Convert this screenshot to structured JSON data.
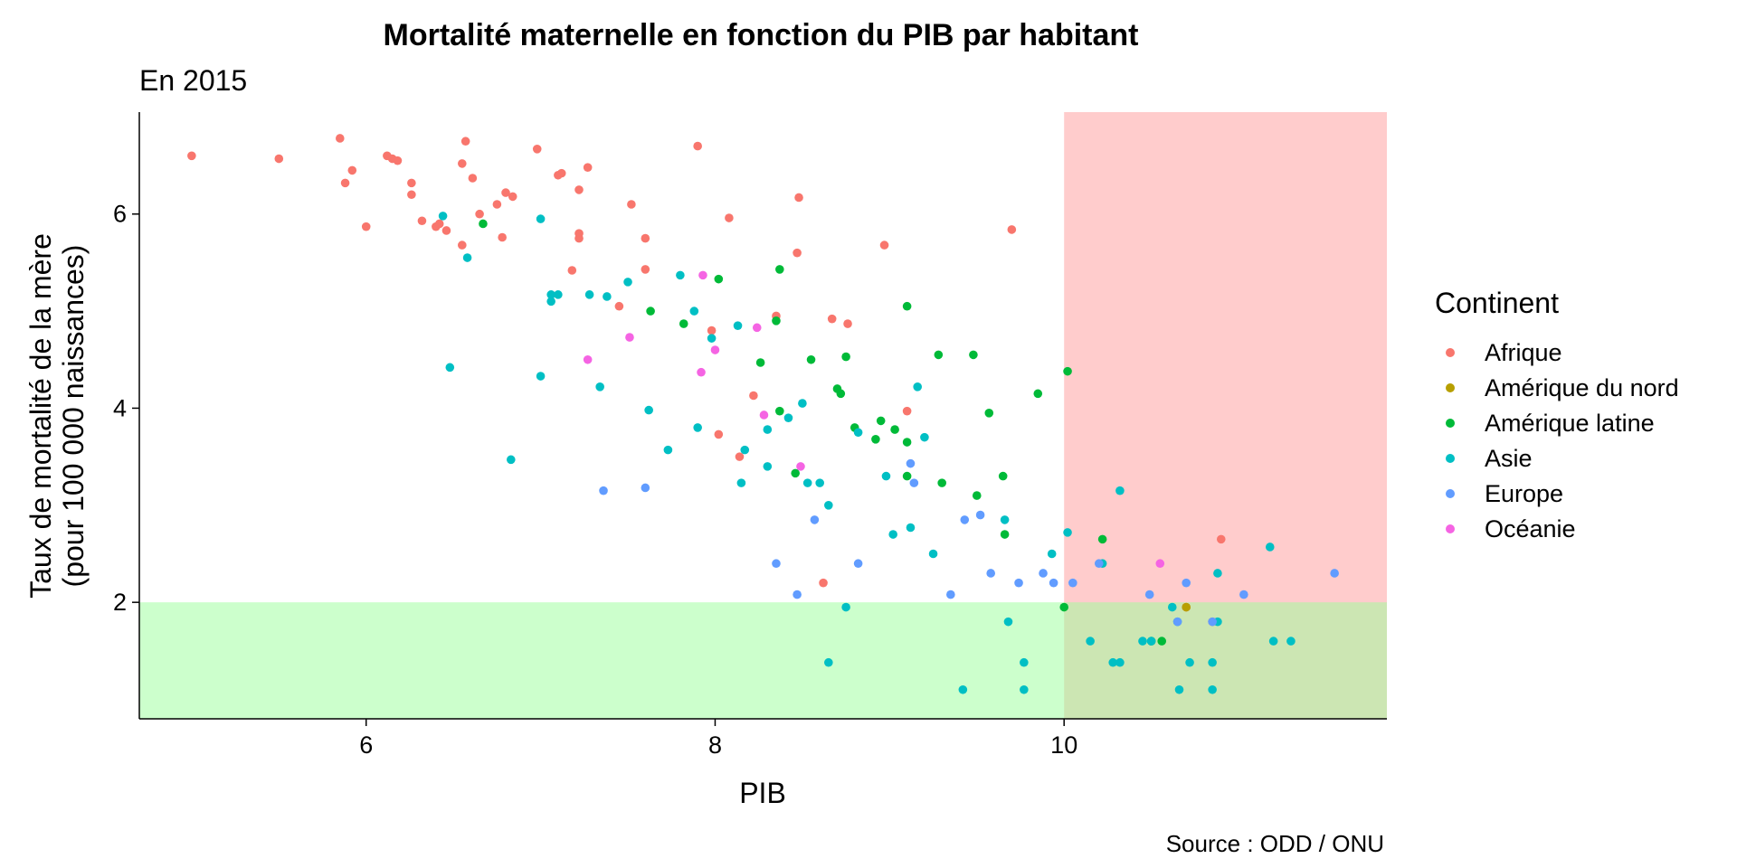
{
  "chart_data": {
    "type": "scatter",
    "title": "Mortalité maternelle en fonction du PIB par habitant",
    "subtitle": "En 2015",
    "xlabel": "PIB",
    "ylabel_line1": "Taux de mortalité de la mère",
    "ylabel_line2": "(pour 100 000 naissances)",
    "caption": "Source : ODD / ONU",
    "xlim": [
      4.7,
      11.85
    ],
    "ylim": [
      0.8,
      7.05
    ],
    "xticks": [
      6,
      8,
      10
    ],
    "yticks": [
      2,
      4,
      6
    ],
    "grid": false,
    "legend_position": "right",
    "legend_title": "Continent",
    "regions": [
      {
        "name": "zone-rouge",
        "x": [
          10,
          11.85
        ],
        "y": [
          0.8,
          7.05
        ],
        "color": "#ff9999",
        "opacity": 0.5
      },
      {
        "name": "zone-verte",
        "x": [
          4.7,
          11.85
        ],
        "y": [
          0.8,
          2.0
        ],
        "color": "#99ff99",
        "opacity": 0.5
      }
    ],
    "series": [
      {
        "name": "Afrique",
        "color": "#F8766D",
        "points": [
          [
            5.0,
            6.6
          ],
          [
            5.5,
            6.57
          ],
          [
            5.85,
            6.78
          ],
          [
            5.88,
            6.32
          ],
          [
            5.92,
            6.45
          ],
          [
            6.0,
            5.87
          ],
          [
            6.12,
            6.6
          ],
          [
            6.15,
            6.57
          ],
          [
            6.18,
            6.55
          ],
          [
            6.26,
            6.32
          ],
          [
            6.26,
            6.2
          ],
          [
            6.32,
            5.93
          ],
          [
            6.4,
            5.87
          ],
          [
            6.42,
            5.9
          ],
          [
            6.46,
            5.83
          ],
          [
            6.55,
            6.52
          ],
          [
            6.57,
            6.75
          ],
          [
            6.61,
            6.37
          ],
          [
            6.65,
            6.0
          ],
          [
            6.55,
            5.68
          ],
          [
            6.75,
            6.1
          ],
          [
            6.78,
            5.76
          ],
          [
            6.8,
            6.22
          ],
          [
            6.84,
            6.18
          ],
          [
            6.98,
            6.67
          ],
          [
            7.1,
            6.4
          ],
          [
            7.12,
            6.42
          ],
          [
            7.18,
            5.42
          ],
          [
            7.22,
            6.25
          ],
          [
            7.22,
            5.75
          ],
          [
            7.22,
            5.8
          ],
          [
            7.27,
            6.48
          ],
          [
            7.45,
            5.05
          ],
          [
            7.52,
            6.1
          ],
          [
            7.6,
            5.75
          ],
          [
            7.6,
            5.43
          ],
          [
            7.9,
            6.7
          ],
          [
            7.98,
            4.8
          ],
          [
            8.08,
            5.96
          ],
          [
            8.02,
            3.73
          ],
          [
            8.14,
            3.5
          ],
          [
            8.22,
            4.13
          ],
          [
            8.35,
            4.95
          ],
          [
            8.47,
            5.6
          ],
          [
            8.48,
            6.17
          ],
          [
            8.62,
            2.2
          ],
          [
            8.67,
            4.92
          ],
          [
            8.76,
            4.87
          ],
          [
            8.97,
            5.68
          ],
          [
            9.1,
            3.97
          ],
          [
            9.7,
            5.84
          ],
          [
            10.9,
            2.65
          ],
          [
            10.7,
            1.95
          ],
          [
            10.85,
            1.8
          ]
        ]
      },
      {
        "name": "Amérique du nord",
        "color": "#B79F00",
        "points": [
          [
            10.7,
            1.95
          ]
        ]
      },
      {
        "name": "Amérique latine",
        "color": "#00BA38",
        "points": [
          [
            6.67,
            5.9
          ],
          [
            7.63,
            5.0
          ],
          [
            7.82,
            4.87
          ],
          [
            8.02,
            5.33
          ],
          [
            8.26,
            4.47
          ],
          [
            8.35,
            4.9
          ],
          [
            8.37,
            5.43
          ],
          [
            8.37,
            3.97
          ],
          [
            8.46,
            3.33
          ],
          [
            8.55,
            4.5
          ],
          [
            8.7,
            4.2
          ],
          [
            8.72,
            4.15
          ],
          [
            8.75,
            4.53
          ],
          [
            8.8,
            3.8
          ],
          [
            8.92,
            3.68
          ],
          [
            8.95,
            3.87
          ],
          [
            9.03,
            3.78
          ],
          [
            9.1,
            3.65
          ],
          [
            9.1,
            3.3
          ],
          [
            9.1,
            5.05
          ],
          [
            9.28,
            4.55
          ],
          [
            9.3,
            3.23
          ],
          [
            9.48,
            4.55
          ],
          [
            9.5,
            3.1
          ],
          [
            9.57,
            3.95
          ],
          [
            9.65,
            3.3
          ],
          [
            9.66,
            2.7
          ],
          [
            9.85,
            4.15
          ],
          [
            10.02,
            4.38
          ],
          [
            10.0,
            1.95
          ],
          [
            10.22,
            2.65
          ],
          [
            10.5,
            1.6
          ],
          [
            10.56,
            1.6
          ]
        ]
      },
      {
        "name": "Asie",
        "color": "#00BFC4",
        "points": [
          [
            6.44,
            5.98
          ],
          [
            6.48,
            4.42
          ],
          [
            6.58,
            5.55
          ],
          [
            6.83,
            3.47
          ],
          [
            7.0,
            4.33
          ],
          [
            7.0,
            5.95
          ],
          [
            7.06,
            5.17
          ],
          [
            7.06,
            5.1
          ],
          [
            7.1,
            5.17
          ],
          [
            7.28,
            5.17
          ],
          [
            7.34,
            4.22
          ],
          [
            7.38,
            5.15
          ],
          [
            7.5,
            5.3
          ],
          [
            7.62,
            3.98
          ],
          [
            7.73,
            3.57
          ],
          [
            7.8,
            5.37
          ],
          [
            7.88,
            5.0
          ],
          [
            7.9,
            3.8
          ],
          [
            7.98,
            4.72
          ],
          [
            8.13,
            4.85
          ],
          [
            8.17,
            3.57
          ],
          [
            8.15,
            3.23
          ],
          [
            8.3,
            3.4
          ],
          [
            8.3,
            3.78
          ],
          [
            8.42,
            3.9
          ],
          [
            8.5,
            4.05
          ],
          [
            8.53,
            3.23
          ],
          [
            8.6,
            3.23
          ],
          [
            8.65,
            3.0
          ],
          [
            8.65,
            1.38
          ],
          [
            8.75,
            1.95
          ],
          [
            8.82,
            3.75
          ],
          [
            8.98,
            3.3
          ],
          [
            9.02,
            2.7
          ],
          [
            9.12,
            2.77
          ],
          [
            9.16,
            4.22
          ],
          [
            9.2,
            3.7
          ],
          [
            9.25,
            2.5
          ],
          [
            9.42,
            1.1
          ],
          [
            9.68,
            1.8
          ],
          [
            9.77,
            1.38
          ],
          [
            9.77,
            1.1
          ],
          [
            9.66,
            2.85
          ],
          [
            9.93,
            2.5
          ],
          [
            10.02,
            2.72
          ],
          [
            10.15,
            1.6
          ],
          [
            10.22,
            2.4
          ],
          [
            10.28,
            1.38
          ],
          [
            10.32,
            1.38
          ],
          [
            10.32,
            3.15
          ],
          [
            10.45,
            1.6
          ],
          [
            10.5,
            1.6
          ],
          [
            10.62,
            1.95
          ],
          [
            10.65,
            1.8
          ],
          [
            10.66,
            1.1
          ],
          [
            10.72,
            1.38
          ],
          [
            10.85,
            1.38
          ],
          [
            10.85,
            1.1
          ],
          [
            10.88,
            1.8
          ],
          [
            10.88,
            2.3
          ],
          [
            11.18,
            2.57
          ],
          [
            11.2,
            1.6
          ],
          [
            11.3,
            1.6
          ]
        ]
      },
      {
        "name": "Europe",
        "color": "#619CFF",
        "points": [
          [
            7.36,
            3.15
          ],
          [
            7.6,
            3.18
          ],
          [
            8.35,
            2.4
          ],
          [
            8.47,
            2.08
          ],
          [
            8.57,
            2.85
          ],
          [
            8.82,
            2.4
          ],
          [
            9.12,
            3.43
          ],
          [
            9.14,
            3.23
          ],
          [
            9.35,
            2.08
          ],
          [
            9.43,
            2.85
          ],
          [
            9.52,
            2.9
          ],
          [
            9.58,
            2.3
          ],
          [
            9.74,
            2.2
          ],
          [
            9.88,
            2.3
          ],
          [
            9.94,
            2.2
          ],
          [
            10.05,
            2.2
          ],
          [
            10.2,
            2.4
          ],
          [
            10.49,
            2.08
          ],
          [
            10.65,
            1.8
          ],
          [
            10.7,
            2.2
          ],
          [
            10.85,
            1.8
          ],
          [
            11.03,
            2.08
          ],
          [
            11.55,
            2.3
          ]
        ]
      },
      {
        "name": "Océanie",
        "color": "#F564E3",
        "points": [
          [
            7.27,
            4.5
          ],
          [
            7.51,
            4.73
          ],
          [
            7.93,
            5.37
          ],
          [
            7.92,
            4.37
          ],
          [
            8.0,
            4.6
          ],
          [
            8.24,
            4.83
          ],
          [
            8.28,
            3.93
          ],
          [
            8.49,
            3.4
          ],
          [
            10.55,
            2.4
          ]
        ]
      }
    ]
  }
}
